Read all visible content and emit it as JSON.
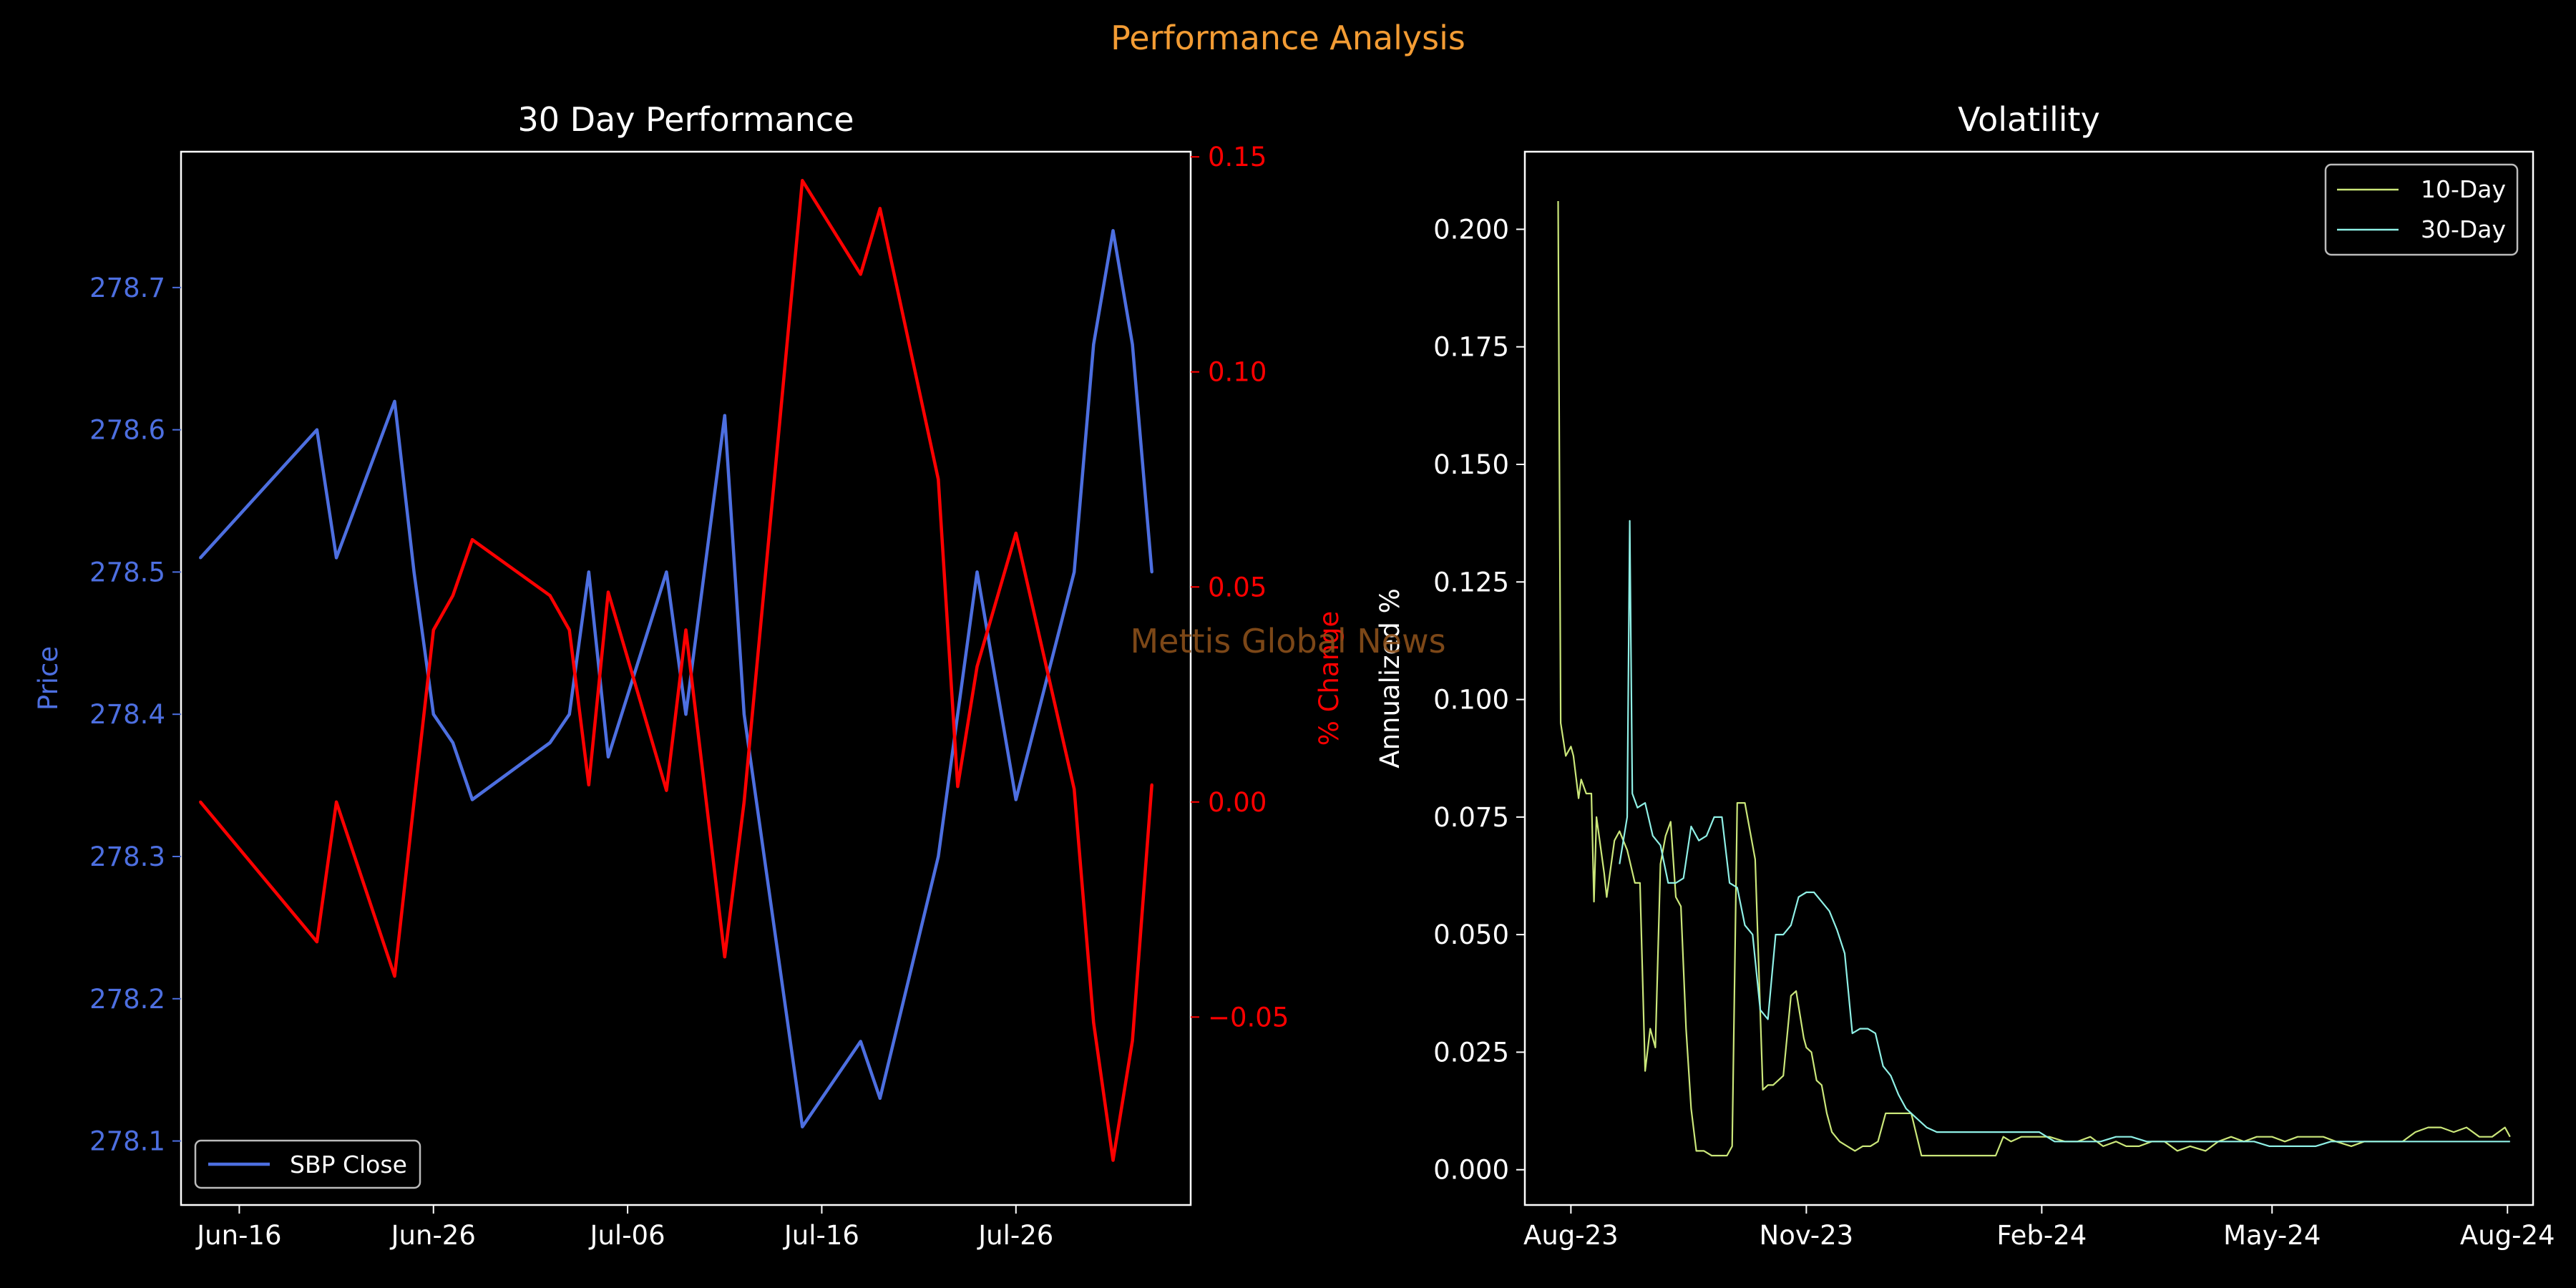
{
  "suptitle": "Performance Analysis",
  "watermark": "Mettis Global News",
  "colors": {
    "background": "#000000",
    "suptitle": "#f39c34",
    "watermark": "#8a4f1a",
    "price": "#4d6fe0",
    "pct": "#ff0000",
    "vol10": "#cbe77a",
    "vol30": "#8ff0e6",
    "axes": "#ffffff"
  },
  "chart_data": [
    {
      "type": "line",
      "title": "30 Day Performance",
      "ylabel": "Price",
      "y2label": "% Change",
      "ylim": [
        278.055,
        278.7955
      ],
      "y2lim": [
        -0.0937,
        0.1512
      ],
      "xlim": [
        "2024-06-13",
        "2024-08-04"
      ],
      "x_ticks": [
        "Jun-16",
        "Jun-26",
        "Jul-06",
        "Jul-16",
        "Jul-26"
      ],
      "x_tick_dates": [
        "2024-06-16",
        "2024-06-26",
        "2024-07-06",
        "2024-07-16",
        "2024-07-26"
      ],
      "y_ticks": [
        278.1,
        278.2,
        278.3,
        278.4,
        278.5,
        278.6,
        278.7
      ],
      "y2_ticks": [
        -0.05,
        0.0,
        0.05,
        0.1,
        0.15
      ],
      "legend": {
        "position": "lower-left",
        "entries": [
          "SBP Close"
        ]
      },
      "series": [
        {
          "name": "SBP Close",
          "axis": "left",
          "x": [
            "2024-06-14",
            "2024-06-20",
            "2024-06-21",
            "2024-06-24",
            "2024-06-25",
            "2024-06-26",
            "2024-06-27",
            "2024-06-28",
            "2024-07-02",
            "2024-07-03",
            "2024-07-04",
            "2024-07-05",
            "2024-07-08",
            "2024-07-09",
            "2024-07-11",
            "2024-07-12",
            "2024-07-15",
            "2024-07-18",
            "2024-07-19",
            "2024-07-22",
            "2024-07-23",
            "2024-07-24",
            "2024-07-26",
            "2024-07-29",
            "2024-07-30",
            "2024-07-31",
            "2024-08-01",
            "2024-08-02"
          ],
          "values": [
            278.51,
            278.6,
            278.51,
            278.62,
            278.5,
            278.4,
            278.38,
            278.34,
            278.38,
            278.4,
            278.5,
            278.37,
            278.5,
            278.4,
            278.61,
            278.4,
            278.11,
            278.17,
            278.13,
            278.3,
            278.4,
            278.5,
            278.34,
            278.5,
            278.66,
            278.74,
            278.66,
            278.5
          ]
        },
        {
          "name": "% Change",
          "axis": "right",
          "x": [
            "2024-06-14",
            "2024-06-20",
            "2024-06-21",
            "2024-06-24",
            "2024-06-25",
            "2024-06-26",
            "2024-06-27",
            "2024-06-28",
            "2024-07-02",
            "2024-07-03",
            "2024-07-04",
            "2024-07-05",
            "2024-07-08",
            "2024-07-09",
            "2024-07-11",
            "2024-07-12",
            "2024-07-15",
            "2024-07-18",
            "2024-07-19",
            "2024-07-22",
            "2024-07-23",
            "2024-07-24",
            "2024-07-26",
            "2024-07-29",
            "2024-07-30",
            "2024-07-31",
            "2024-08-01",
            "2024-08-02"
          ],
          "values": [
            0.0,
            -0.0325,
            0.0,
            -0.0405,
            0.0,
            0.04,
            0.048,
            0.061,
            0.048,
            0.04,
            0.004,
            0.0488,
            0.0027,
            0.04,
            -0.036,
            0.0,
            0.1445,
            0.1227,
            0.138,
            0.075,
            0.0036,
            0.0315,
            0.0625,
            0.003,
            -0.0513,
            -0.0833,
            -0.0555,
            0.004
          ]
        }
      ]
    },
    {
      "type": "line",
      "title": "Volatility",
      "ylabel": "Annualized %",
      "ylim": [
        -0.0075,
        0.2165
      ],
      "xlim": [
        "2023-07-14",
        "2024-08-11"
      ],
      "x_ticks": [
        "Aug-23",
        "Nov-23",
        "Feb-24",
        "May-24",
        "Aug-24"
      ],
      "x_tick_dates": [
        "2023-08-01",
        "2023-11-01",
        "2024-02-01",
        "2024-05-01",
        "2024-08-01"
      ],
      "y_ticks": [
        0.0,
        0.025,
        0.05,
        0.075,
        0.1,
        0.125,
        0.15,
        0.175,
        0.2
      ],
      "y_tick_labels": [
        "0.000",
        "0.025",
        "0.050",
        "0.075",
        "0.100",
        "0.125",
        "0.150",
        "0.175",
        "0.200"
      ],
      "legend": {
        "position": "upper-right",
        "entries": [
          "10-Day",
          "30-Day"
        ]
      },
      "series": [
        {
          "name": "10-Day",
          "x": [
            "2023-07-27",
            "2023-07-28",
            "2023-07-30",
            "2023-08-01",
            "2023-08-02",
            "2023-08-04",
            "2023-08-05",
            "2023-08-07",
            "2023-08-09",
            "2023-08-10",
            "2023-08-11",
            "2023-08-14",
            "2023-08-15",
            "2023-08-18",
            "2023-08-20",
            "2023-08-23",
            "2023-08-26",
            "2023-08-28",
            "2023-08-30",
            "2023-09-01",
            "2023-09-03",
            "2023-09-05",
            "2023-09-07",
            "2023-09-09",
            "2023-09-11",
            "2023-09-13",
            "2023-09-15",
            "2023-09-17",
            "2023-09-19",
            "2023-09-22",
            "2023-09-25",
            "2023-09-28",
            "2023-10-01",
            "2023-10-03",
            "2023-10-05",
            "2023-10-08",
            "2023-10-11",
            "2023-10-12",
            "2023-10-15",
            "2023-10-17",
            "2023-10-19",
            "2023-10-21",
            "2023-10-23",
            "2023-10-26",
            "2023-10-28",
            "2023-10-31",
            "2023-11-01",
            "2023-11-03",
            "2023-11-05",
            "2023-11-07",
            "2023-11-09",
            "2023-11-11",
            "2023-11-14",
            "2023-11-17",
            "2023-11-20",
            "2023-11-23",
            "2023-11-26",
            "2023-11-29",
            "2023-12-02",
            "2023-12-05",
            "2023-12-08",
            "2023-12-12",
            "2023-12-16",
            "2023-12-20",
            "2023-12-25",
            "2023-12-30",
            "2024-01-04",
            "2024-01-09",
            "2024-01-14",
            "2024-01-17",
            "2024-01-20",
            "2024-01-24",
            "2024-01-29",
            "2024-02-04",
            "2024-02-10",
            "2024-02-15",
            "2024-02-20",
            "2024-02-25",
            "2024-03-01",
            "2024-03-05",
            "2024-03-10",
            "2024-03-15",
            "2024-03-20",
            "2024-03-25",
            "2024-03-30",
            "2024-04-05",
            "2024-04-10",
            "2024-04-15",
            "2024-04-20",
            "2024-04-25",
            "2024-05-01",
            "2024-05-06",
            "2024-05-11",
            "2024-05-16",
            "2024-05-21",
            "2024-05-26",
            "2024-06-01",
            "2024-06-06",
            "2024-06-11",
            "2024-06-16",
            "2024-06-21",
            "2024-06-26",
            "2024-07-01",
            "2024-07-06",
            "2024-07-11",
            "2024-07-16",
            "2024-07-21",
            "2024-07-26",
            "2024-07-31",
            "2024-08-02"
          ],
          "values": [
            0.206,
            0.095,
            0.088,
            0.09,
            0.088,
            0.079,
            0.083,
            0.08,
            0.08,
            0.057,
            0.075,
            0.063,
            0.058,
            0.07,
            0.072,
            0.068,
            0.061,
            0.061,
            0.021,
            0.03,
            0.026,
            0.065,
            0.071,
            0.074,
            0.058,
            0.056,
            0.03,
            0.013,
            0.004,
            0.004,
            0.003,
            0.003,
            0.003,
            0.005,
            0.078,
            0.078,
            0.069,
            0.066,
            0.017,
            0.018,
            0.018,
            0.019,
            0.02,
            0.037,
            0.038,
            0.028,
            0.026,
            0.025,
            0.019,
            0.018,
            0.012,
            0.008,
            0.006,
            0.005,
            0.004,
            0.005,
            0.005,
            0.006,
            0.012,
            0.012,
            0.012,
            0.012,
            0.003,
            0.003,
            0.003,
            0.003,
            0.003,
            0.003,
            0.003,
            0.007,
            0.006,
            0.007,
            0.007,
            0.007,
            0.006,
            0.006,
            0.007,
            0.005,
            0.006,
            0.005,
            0.005,
            0.006,
            0.006,
            0.004,
            0.005,
            0.004,
            0.006,
            0.007,
            0.006,
            0.007,
            0.007,
            0.006,
            0.007,
            0.007,
            0.007,
            0.006,
            0.005,
            0.006,
            0.006,
            0.006,
            0.006,
            0.008,
            0.009,
            0.009,
            0.008,
            0.009,
            0.007,
            0.007,
            0.009,
            0.007
          ]
        },
        {
          "name": "30-Day",
          "x": [
            "2023-08-20",
            "2023-08-23",
            "2023-08-24",
            "2023-08-25",
            "2023-08-27",
            "2023-08-30",
            "2023-09-02",
            "2023-09-05",
            "2023-09-08",
            "2023-09-11",
            "2023-09-14",
            "2023-09-17",
            "2023-09-20",
            "2023-09-23",
            "2023-09-26",
            "2023-09-29",
            "2023-10-02",
            "2023-10-05",
            "2023-10-08",
            "2023-10-11",
            "2023-10-14",
            "2023-10-17",
            "2023-10-20",
            "2023-10-23",
            "2023-10-26",
            "2023-10-29",
            "2023-11-01",
            "2023-11-04",
            "2023-11-07",
            "2023-11-10",
            "2023-11-13",
            "2023-11-16",
            "2023-11-19",
            "2023-11-22",
            "2023-11-25",
            "2023-11-28",
            "2023-12-01",
            "2023-12-04",
            "2023-12-07",
            "2023-12-10",
            "2023-12-14",
            "2023-12-18",
            "2023-12-22",
            "2023-12-27",
            "2024-01-01",
            "2024-01-06",
            "2024-01-11",
            "2024-01-16",
            "2024-01-21",
            "2024-01-26",
            "2024-01-31",
            "2024-02-06",
            "2024-02-12",
            "2024-02-18",
            "2024-02-24",
            "2024-03-01",
            "2024-03-07",
            "2024-03-13",
            "2024-03-19",
            "2024-03-25",
            "2024-03-31",
            "2024-04-06",
            "2024-04-12",
            "2024-04-18",
            "2024-04-24",
            "2024-04-30",
            "2024-05-06",
            "2024-05-12",
            "2024-05-18",
            "2024-05-24",
            "2024-05-30",
            "2024-06-05",
            "2024-06-11",
            "2024-06-17",
            "2024-06-23",
            "2024-06-29",
            "2024-07-05",
            "2024-07-11",
            "2024-07-17",
            "2024-07-23",
            "2024-07-29",
            "2024-08-02"
          ],
          "values": [
            0.065,
            0.075,
            0.138,
            0.08,
            0.077,
            0.078,
            0.071,
            0.069,
            0.061,
            0.061,
            0.062,
            0.073,
            0.07,
            0.071,
            0.075,
            0.075,
            0.061,
            0.06,
            0.052,
            0.05,
            0.034,
            0.032,
            0.05,
            0.05,
            0.052,
            0.058,
            0.059,
            0.059,
            0.057,
            0.055,
            0.051,
            0.046,
            0.029,
            0.03,
            0.03,
            0.029,
            0.022,
            0.02,
            0.016,
            0.013,
            0.011,
            0.009,
            0.008,
            0.008,
            0.008,
            0.008,
            0.008,
            0.008,
            0.008,
            0.008,
            0.008,
            0.006,
            0.006,
            0.006,
            0.006,
            0.007,
            0.007,
            0.006,
            0.006,
            0.006,
            0.006,
            0.006,
            0.006,
            0.006,
            0.006,
            0.005,
            0.005,
            0.005,
            0.005,
            0.006,
            0.006,
            0.006,
            0.006,
            0.006,
            0.006,
            0.006,
            0.006,
            0.006,
            0.006,
            0.006,
            0.006,
            0.006
          ]
        }
      ]
    }
  ]
}
